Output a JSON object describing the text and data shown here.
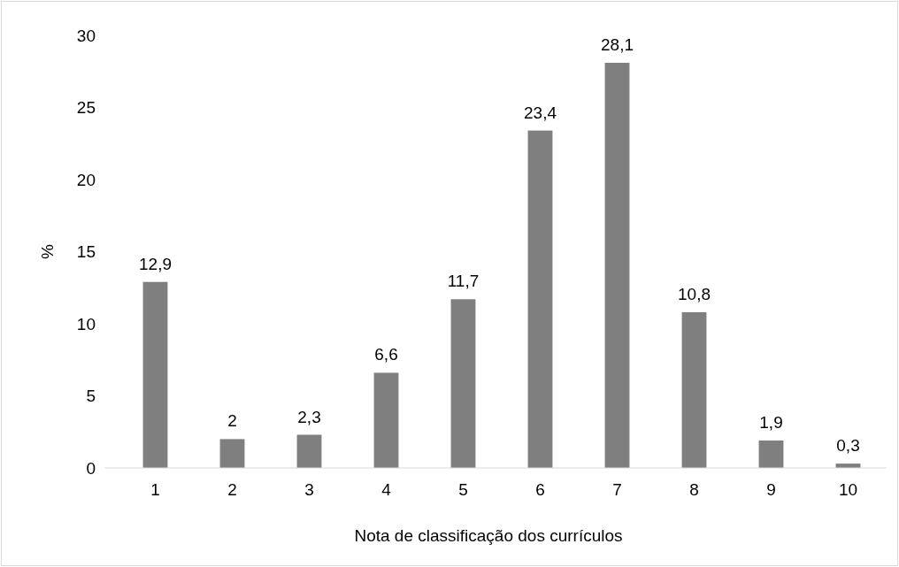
{
  "chart_data": {
    "type": "bar",
    "xlabel": "Nota de classificação dos currículos",
    "ylabel": "%",
    "categories": [
      "1",
      "2",
      "3",
      "4",
      "5",
      "6",
      "7",
      "8",
      "9",
      "10"
    ],
    "values": [
      12.9,
      2,
      2.3,
      6.6,
      11.7,
      23.4,
      28.1,
      10.8,
      1.9,
      0.3
    ],
    "value_labels": [
      "12,9",
      "2",
      "2,3",
      "6,6",
      "11,7",
      "23,4",
      "28,1",
      "10,8",
      "1,9",
      "0,3"
    ],
    "color": "#7f7f7f",
    "ylim": [
      0,
      30
    ],
    "yticks": [
      0,
      5,
      10,
      15,
      20,
      25,
      30
    ],
    "grid": false
  }
}
